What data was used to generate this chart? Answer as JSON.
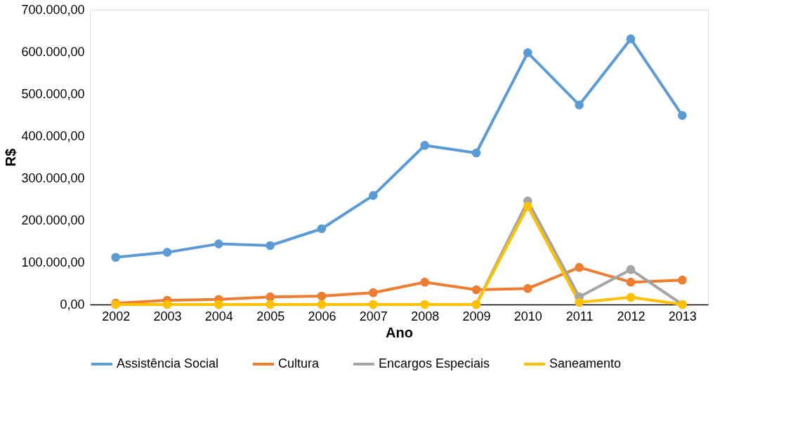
{
  "chart_data": {
    "type": "line",
    "xlabel": "Ano",
    "ylabel": "R$",
    "categories": [
      "2002",
      "2003",
      "2004",
      "2005",
      "2006",
      "2007",
      "2008",
      "2009",
      "2010",
      "2011",
      "2012",
      "2013"
    ],
    "series": [
      {
        "name": "Assistência Social",
        "color": "#5b9bd5",
        "values": [
          112000,
          124000,
          144000,
          140000,
          180000,
          259000,
          378000,
          360000,
          598000,
          474000,
          631000,
          449000
        ]
      },
      {
        "name": "Cultura",
        "color": "#ed7d31",
        "values": [
          3000,
          10000,
          12000,
          18000,
          20000,
          28000,
          53000,
          35000,
          38000,
          88000,
          53000,
          58000
        ]
      },
      {
        "name": "Encargos Especiais",
        "color": "#a5a5a5",
        "values": [
          null,
          null,
          null,
          null,
          null,
          null,
          null,
          0,
          246000,
          18000,
          83000,
          0
        ]
      },
      {
        "name": "Saneamento",
        "color": "#ffc000",
        "values": [
          0,
          0,
          0,
          0,
          0,
          0,
          0,
          0,
          233000,
          5000,
          17000,
          0
        ]
      }
    ],
    "ylim": [
      0,
      700000
    ],
    "yticks": [
      {
        "value": 0,
        "label": "0,00"
      },
      {
        "value": 100000,
        "label": "100.000,00"
      },
      {
        "value": 200000,
        "label": "200.000,00"
      },
      {
        "value": 300000,
        "label": "300.000,00"
      },
      {
        "value": 400000,
        "label": "400.000,00"
      },
      {
        "value": 500000,
        "label": "500.000,00"
      },
      {
        "value": 600000,
        "label": "600.000,00"
      },
      {
        "value": 700000,
        "label": "700.000,00"
      }
    ],
    "grid": false,
    "legend": "bottom",
    "marker": "circle",
    "line_style": "solid"
  }
}
